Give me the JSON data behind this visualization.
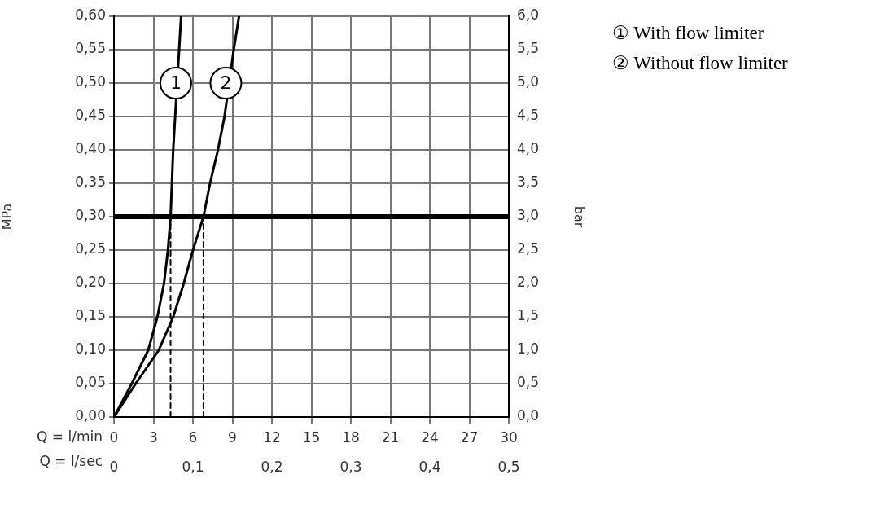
{
  "chart_data": {
    "type": "line",
    "xlabel": "Q = l/min",
    "x2label": "Q = l/sec",
    "ylabel": "MPa",
    "y2label": "bar",
    "xlim": [
      0,
      30
    ],
    "xticks": [
      0,
      3,
      6,
      9,
      12,
      15,
      18,
      21,
      24,
      27,
      30
    ],
    "x2lim": [
      0,
      0.5
    ],
    "x2ticks": [
      0,
      {
        "value": 0.1,
        "label": "0,1"
      },
      {
        "value": 0.2,
        "label": "0,2"
      },
      {
        "value": 0.3,
        "label": "0,3"
      },
      {
        "value": 0.4,
        "label": "0,4"
      },
      {
        "value": 0.5,
        "label": "0,5"
      }
    ],
    "ylim": [
      0,
      0.6
    ],
    "yticks": [
      {
        "value": 0,
        "label": "0,00"
      },
      {
        "value": 0.05,
        "label": "0,05"
      },
      {
        "value": 0.1,
        "label": "0,10"
      },
      {
        "value": 0.15,
        "label": "0,15"
      },
      {
        "value": 0.2,
        "label": "0,20"
      },
      {
        "value": 0.25,
        "label": "0,25"
      },
      {
        "value": 0.3,
        "label": "0,30"
      },
      {
        "value": 0.35,
        "label": "0,35"
      },
      {
        "value": 0.4,
        "label": "0,40"
      },
      {
        "value": 0.45,
        "label": "0,45"
      },
      {
        "value": 0.5,
        "label": "0,50"
      },
      {
        "value": 0.55,
        "label": "0,55"
      },
      {
        "value": 0.6,
        "label": "0,60"
      }
    ],
    "y2lim": [
      0,
      6
    ],
    "y2ticks": [
      {
        "value": 0,
        "label": "0,0"
      },
      {
        "value": 0.5,
        "label": "0,5"
      },
      {
        "value": 1,
        "label": "1,0"
      },
      {
        "value": 1.5,
        "label": "1,5"
      },
      {
        "value": 2,
        "label": "2,0"
      },
      {
        "value": 2.5,
        "label": "2,5"
      },
      {
        "value": 3,
        "label": "3,0"
      },
      {
        "value": 3.5,
        "label": "3,5"
      },
      {
        "value": 4,
        "label": "4,0"
      },
      {
        "value": 4.5,
        "label": "4,5"
      },
      {
        "value": 5,
        "label": "5,0"
      },
      {
        "value": 5.5,
        "label": "5,5"
      },
      {
        "value": 6,
        "label": "6,0"
      }
    ],
    "grid": true,
    "legend": "top right",
    "marker": "none",
    "line_style": "solid",
    "series": [
      {
        "name": "① With flow limiter",
        "color": "#000000",
        "x": [
          0,
          1.35,
          2.6,
          3.3,
          3.8,
          4.1,
          4.3,
          4.4,
          4.5,
          4.65,
          5.1
        ],
        "values": [
          0,
          0.05,
          0.1,
          0.15,
          0.2,
          0.25,
          0.3,
          0.35,
          0.4,
          0.45,
          0.6
        ]
      },
      {
        "name": "② Without flow limiter",
        "color": "#000000",
        "x": [
          0,
          1.65,
          3.4,
          4.5,
          5.3,
          6,
          6.8,
          7.3,
          7.9,
          8.4,
          9.1,
          9.5
        ],
        "values": [
          0,
          0.05,
          0.1,
          0.15,
          0.2,
          0.25,
          0.3,
          0.35,
          0.4,
          0.45,
          0.55,
          0.6
        ]
      },
      {
        "type": "line",
        "line_style": "dashed",
        "color": "#000000",
        "x": [
          4.3,
          4.3
        ],
        "values": [
          0,
          0.3
        ]
      },
      {
        "type": "line",
        "line_style": "dashed",
        "color": "#000000",
        "x": [
          6.8,
          6.8
        ],
        "values": [
          0,
          0.3
        ]
      }
    ],
    "ref_lines": [
      {
        "axis": "y",
        "value": 0.3,
        "color": "#000000"
      }
    ],
    "annotations": [
      {
        "text": "1",
        "x": 4.7,
        "y": 0.5
      },
      {
        "text": "2",
        "x": 8.5,
        "y": 0.5
      }
    ]
  }
}
